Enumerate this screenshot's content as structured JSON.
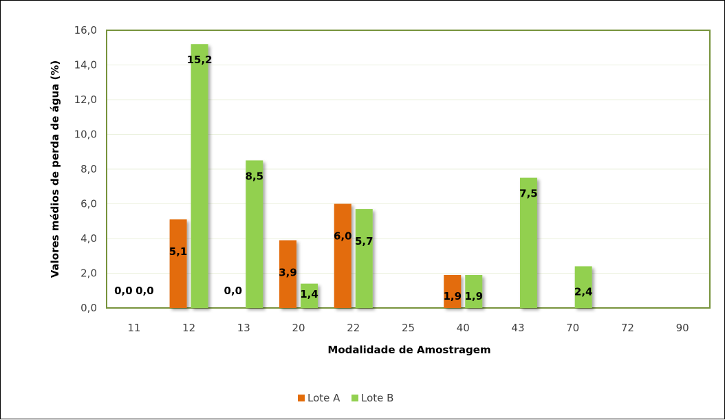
{
  "chart_data": {
    "type": "bar",
    "title": "",
    "xlabel": "Modalidade de Amostragem",
    "ylabel": "Valores médios de perda de água (%)",
    "ylim": [
      0,
      16
    ],
    "yticks": [
      "0,0",
      "2,0",
      "4,0",
      "6,0",
      "8,0",
      "10,0",
      "12,0",
      "14,0",
      "16,0"
    ],
    "categories": [
      "11",
      "12",
      "13",
      "20",
      "22",
      "25",
      "40",
      "43",
      "70",
      "72",
      "90"
    ],
    "series": [
      {
        "name": "Lote A",
        "color": "#E36C09",
        "values": [
          0.0,
          5.1,
          0.0,
          3.9,
          6.0,
          null,
          1.9,
          null,
          null,
          null,
          null
        ],
        "labels": [
          "0,0",
          "5,1",
          "0,0",
          "3,9",
          "6,0",
          null,
          "1,9",
          null,
          null,
          null,
          null
        ]
      },
      {
        "name": "Lote B",
        "color": "#92D050",
        "values": [
          0.0,
          15.2,
          8.5,
          1.4,
          5.7,
          null,
          1.9,
          7.5,
          2.4,
          null,
          null
        ],
        "labels": [
          "0,0",
          "15,2",
          "8,5",
          "1,4",
          "5,7",
          null,
          "1,9",
          "7,5",
          "2,4",
          null,
          null
        ]
      }
    ],
    "gridlines": true,
    "legend_position": "bottom-center",
    "plot_border_color": "#77933C"
  }
}
